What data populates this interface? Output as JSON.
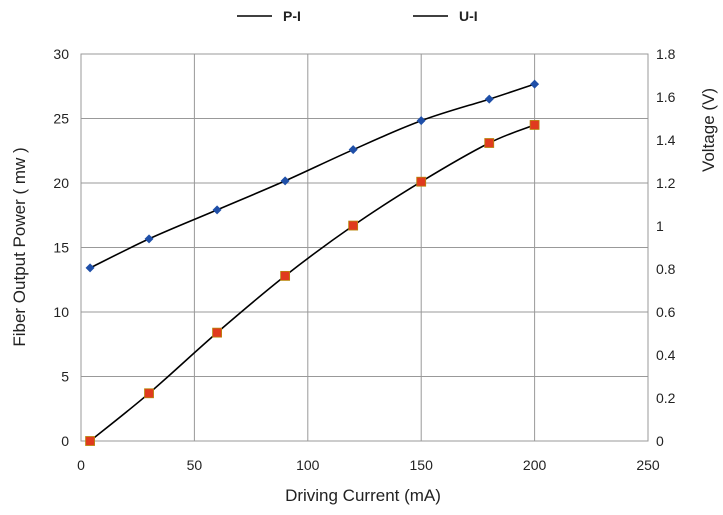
{
  "chart_data": {
    "type": "line",
    "xlabel": "Driving Current   (mA)",
    "ylabel_left": "Fiber Output Power ( mw )",
    "ylabel_right": "Voltage  (V)",
    "xlim": [
      0,
      250
    ],
    "ylim_left": [
      0,
      30
    ],
    "ylim_right": [
      0,
      1.8
    ],
    "x_ticks": [
      "0",
      "50",
      "100",
      "150",
      "200",
      "250"
    ],
    "y_left_ticks": [
      "0",
      "5",
      "10",
      "15",
      "20",
      "25",
      "30"
    ],
    "y_right_ticks": [
      "0",
      "0.2",
      "0.4",
      "0.6",
      "0.8",
      "1",
      "1.2",
      "1.4",
      "1.6",
      "1.8"
    ],
    "grid": true,
    "legend_position": "top",
    "series": [
      {
        "name": "P-I",
        "axis": "left",
        "marker": "square",
        "marker_color": "#e03a1e",
        "line_color": "#000000",
        "x": [
          4,
          30,
          60,
          90,
          120,
          150,
          180,
          200
        ],
        "y": [
          0,
          3.7,
          8.4,
          12.8,
          16.7,
          20.1,
          23.1,
          24.5
        ]
      },
      {
        "name": "U-I",
        "axis": "right",
        "marker": "diamond",
        "marker_color": "#1f4fa8",
        "line_color": "#000000",
        "x": [
          4,
          30,
          60,
          90,
          120,
          150,
          180,
          200
        ],
        "y": [
          0.805,
          0.94,
          1.075,
          1.21,
          1.355,
          1.49,
          1.59,
          1.66
        ]
      }
    ]
  }
}
